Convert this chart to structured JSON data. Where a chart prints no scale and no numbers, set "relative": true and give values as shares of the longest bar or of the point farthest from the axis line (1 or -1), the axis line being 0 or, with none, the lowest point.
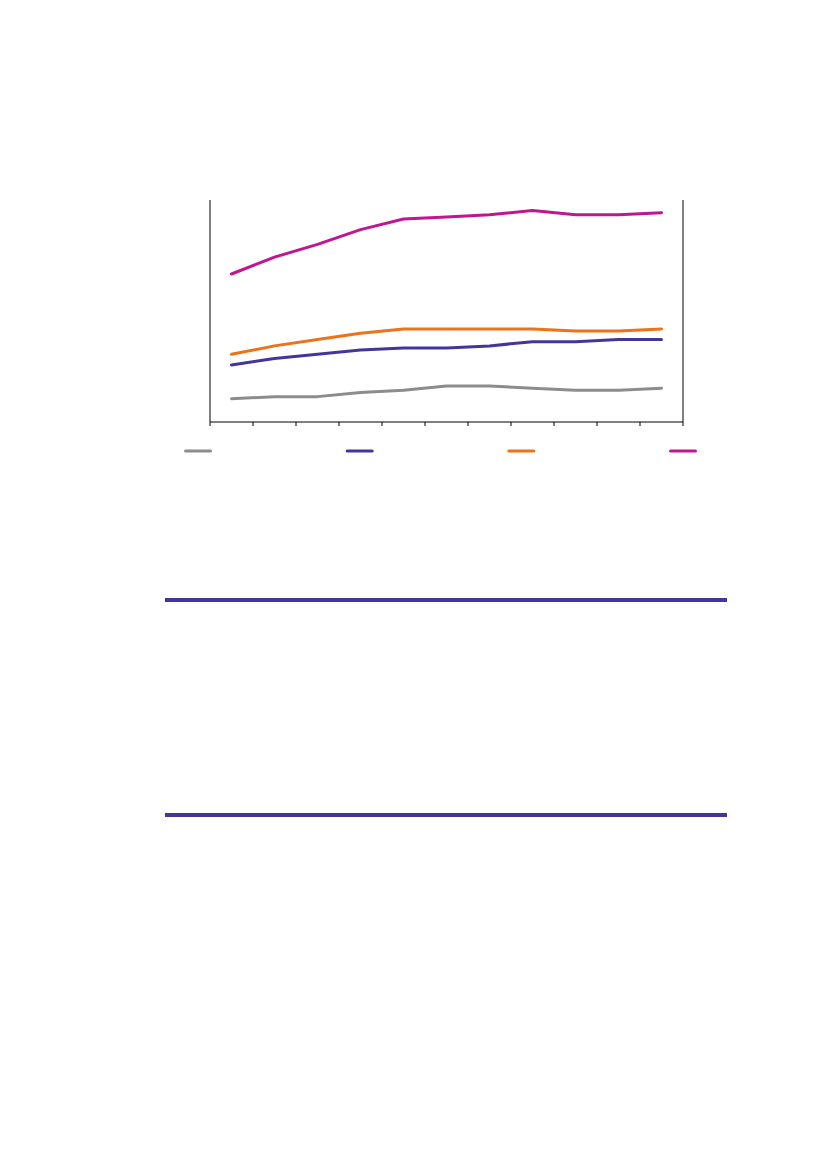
{
  "chart_data": {
    "type": "line",
    "relative": true,
    "categories": [
      null,
      null,
      null,
      null,
      null,
      null,
      null,
      null,
      null,
      null,
      null
    ],
    "series": [
      {
        "color": "#8c8c8c",
        "values": [
          0.11,
          0.12,
          0.12,
          0.14,
          0.15,
          0.17,
          0.17,
          0.16,
          0.15,
          0.15,
          0.16
        ]
      },
      {
        "color": "#43369b",
        "values": [
          0.27,
          0.3,
          0.32,
          0.34,
          0.35,
          0.35,
          0.36,
          0.38,
          0.38,
          0.39,
          0.39
        ]
      },
      {
        "color": "#ee7219",
        "values": [
          0.32,
          0.36,
          0.39,
          0.42,
          0.44,
          0.44,
          0.44,
          0.44,
          0.43,
          0.43,
          0.44
        ]
      },
      {
        "color": "#c1168f",
        "values": [
          0.7,
          0.78,
          0.84,
          0.91,
          0.96,
          0.97,
          0.98,
          1.0,
          0.98,
          0.98,
          0.99
        ]
      }
    ]
  }
}
